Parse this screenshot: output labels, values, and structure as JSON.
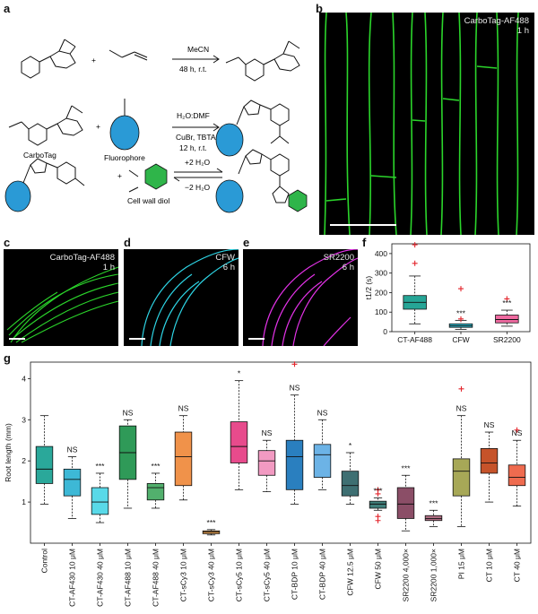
{
  "panels": {
    "a": "a",
    "b": "b",
    "c": "c",
    "d": "d",
    "e": "e",
    "f": "f",
    "g": "g"
  },
  "scheme": {
    "step1_above": "MeCN",
    "step1_below": "48 h, r.t.",
    "step2_above": "H₂O:DMF",
    "step2_below1": "CuBr, TBTA",
    "step2_below2": "12 h, r.t.",
    "step3_forward": "+2 H₂O",
    "step3_reverse": "−2 H₂O",
    "carbotag": "CarboTag",
    "fluorophore": "Fluorophore",
    "cell_wall_diol": "Cell wall diol",
    "plus": "+"
  },
  "micrographs": {
    "b": {
      "name": "CarboTag-AF488",
      "time": "1 h",
      "color": "#2bd52b"
    },
    "c": {
      "name": "CarboTag-AF488",
      "time": "1 h",
      "color": "#2bd52b"
    },
    "d": {
      "name": "CFW",
      "time": "6 h",
      "color": "#2ed6e6"
    },
    "e": {
      "name": "SR2200",
      "time": "6 h",
      "color": "#e232e6"
    }
  },
  "chart_data": [
    {
      "id": "f",
      "type": "box",
      "ylabel": "t1/2 (s)",
      "ylim": [
        0,
        450
      ],
      "yticks": [
        0,
        100,
        200,
        300,
        400
      ],
      "categories": [
        "CT-AF488",
        "CFW",
        "SR2200"
      ],
      "colors": [
        "#26a596",
        "#31b6c8",
        "#ef6aa0"
      ],
      "significance": [
        "",
        "***",
        "***"
      ],
      "boxes": [
        {
          "whisker_low": 40,
          "q1": 115,
          "median": 150,
          "q3": 185,
          "whisker_high": 285,
          "outliers": [
            350,
            445
          ]
        },
        {
          "whisker_low": 12,
          "q1": 22,
          "median": 30,
          "q3": 40,
          "whisker_high": 58,
          "outliers": [
            220,
            65
          ]
        },
        {
          "whisker_low": 28,
          "q1": 45,
          "median": 62,
          "q3": 85,
          "whisker_high": 110,
          "outliers": [
            168
          ]
        }
      ]
    },
    {
      "id": "g",
      "type": "box",
      "ylabel": "Root length (mm)",
      "ylim": [
        0,
        4.4
      ],
      "yticks": [
        1,
        2,
        3,
        4
      ],
      "categories": [
        "Control",
        "CT-AF430 10 μM",
        "CT-AF430 40 μM",
        "CT-AF488 10 μM",
        "CT-AF488 40 μM",
        "CT-sCy3 10 μM",
        "CT-sCy3 40 μM",
        "CT-sCy5 10 μM",
        "CT-sCy5 40 μM",
        "CT-BDP 10 μM",
        "CT-BDP 40 μM",
        "CFW 12.5 μM",
        "CFW 50 μM",
        "SR2200 4,000×",
        "SR2200 1,000×",
        "PI 15 μM",
        "CT 10 μM",
        "CT 40 μM"
      ],
      "colors": [
        "#2aa89a",
        "#3db8d6",
        "#59d9e8",
        "#2f9a58",
        "#52b06d",
        "#f0924a",
        "#f0a54e",
        "#e74b8c",
        "#f29ac2",
        "#2a7fbf",
        "#6cb3e6",
        "#3e6f72",
        "#3f7f7a",
        "#8b4e67",
        "#ad6d82",
        "#a7a857",
        "#c6532a",
        "#ef6b4f"
      ],
      "significance": [
        "",
        "NS",
        "***",
        "NS",
        "***",
        "NS",
        "***",
        "*",
        "NS",
        "NS",
        "NS",
        "*",
        "***",
        "***",
        "***",
        "NS",
        "NS",
        "NS"
      ],
      "boxes": [
        {
          "whisker_low": 0.95,
          "q1": 1.45,
          "median": 1.8,
          "q3": 2.35,
          "whisker_high": 3.1,
          "outliers": []
        },
        {
          "whisker_low": 0.6,
          "q1": 1.15,
          "median": 1.55,
          "q3": 1.8,
          "whisker_high": 2.1,
          "outliers": []
        },
        {
          "whisker_low": 0.5,
          "q1": 0.7,
          "median": 1.0,
          "q3": 1.35,
          "whisker_high": 1.7,
          "outliers": []
        },
        {
          "whisker_low": 0.85,
          "q1": 1.55,
          "median": 2.2,
          "q3": 2.85,
          "whisker_high": 3.0,
          "outliers": []
        },
        {
          "whisker_low": 0.85,
          "q1": 1.05,
          "median": 1.35,
          "q3": 1.45,
          "whisker_high": 1.7,
          "outliers": []
        },
        {
          "whisker_low": 1.05,
          "q1": 1.4,
          "median": 2.1,
          "q3": 2.7,
          "whisker_high": 3.1,
          "outliers": []
        },
        {
          "whisker_low": 0.2,
          "q1": 0.23,
          "median": 0.27,
          "q3": 0.3,
          "whisker_high": 0.33,
          "outliers": []
        },
        {
          "whisker_low": 1.3,
          "q1": 1.95,
          "median": 2.35,
          "q3": 2.95,
          "whisker_high": 3.95,
          "outliers": []
        },
        {
          "whisker_low": 1.25,
          "q1": 1.65,
          "median": 2.0,
          "q3": 2.25,
          "whisker_high": 2.5,
          "outliers": []
        },
        {
          "whisker_low": 0.95,
          "q1": 1.3,
          "median": 2.1,
          "q3": 2.5,
          "whisker_high": 3.6,
          "outliers": [
            4.35
          ]
        },
        {
          "whisker_low": 1.3,
          "q1": 1.6,
          "median": 2.15,
          "q3": 2.4,
          "whisker_high": 3.0,
          "outliers": []
        },
        {
          "whisker_low": 0.95,
          "q1": 1.15,
          "median": 1.4,
          "q3": 1.75,
          "whisker_high": 2.2,
          "outliers": []
        },
        {
          "whisker_low": 0.8,
          "q1": 0.85,
          "median": 0.95,
          "q3": 1.02,
          "whisker_high": 1.1,
          "outliers": [
            0.55,
            0.65,
            1.2,
            1.3
          ]
        },
        {
          "whisker_low": 0.3,
          "q1": 0.6,
          "median": 0.95,
          "q3": 1.35,
          "whisker_high": 1.65,
          "outliers": []
        },
        {
          "whisker_low": 0.4,
          "q1": 0.55,
          "median": 0.6,
          "q3": 0.67,
          "whisker_high": 0.8,
          "outliers": []
        },
        {
          "whisker_low": 0.4,
          "q1": 1.15,
          "median": 1.75,
          "q3": 2.05,
          "whisker_high": 3.1,
          "outliers": [
            3.75
          ]
        },
        {
          "whisker_low": 1.0,
          "q1": 1.7,
          "median": 1.95,
          "q3": 2.3,
          "whisker_high": 2.7,
          "outliers": []
        },
        {
          "whisker_low": 0.9,
          "q1": 1.4,
          "median": 1.6,
          "q3": 1.9,
          "whisker_high": 2.5,
          "outliers": [
            2.75
          ]
        }
      ]
    }
  ]
}
